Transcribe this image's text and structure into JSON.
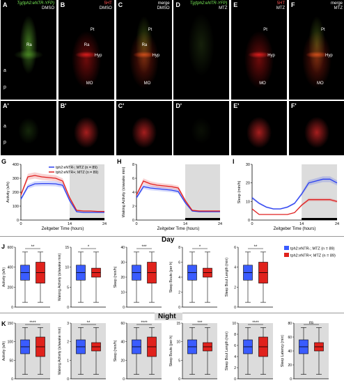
{
  "panels_top": [
    {
      "id": "A",
      "title_lines": [
        "Tg(tph2:eNTR-YFP)",
        "DMSO"
      ],
      "annos": [
        "Ra"
      ]
    },
    {
      "id": "B",
      "title_lines": [
        "5HT",
        "DMSO"
      ],
      "annos": [
        "Pt",
        "Ra",
        "Hyp",
        "MO"
      ]
    },
    {
      "id": "C",
      "title_lines": [
        "merge",
        "DMSO"
      ],
      "annos": [
        "Pt",
        "Ra",
        "Hyp",
        "MO"
      ]
    },
    {
      "id": "D",
      "title_lines": [
        "Tg(tph2:eNTR-YFP)",
        "MTZ"
      ],
      "annos": []
    },
    {
      "id": "E",
      "title_lines": [
        "5HT",
        "MTZ"
      ],
      "annos": [
        "Pt",
        "Hyp",
        "MO"
      ]
    },
    {
      "id": "F",
      "title_lines": [
        "merge",
        "MTZ"
      ],
      "annos": [
        "Pt",
        "Hyp",
        "MO"
      ]
    }
  ],
  "panels_mid": [
    {
      "id": "A'"
    },
    {
      "id": "B'"
    },
    {
      "id": "C'"
    },
    {
      "id": "D'"
    },
    {
      "id": "E'"
    },
    {
      "id": "F'"
    }
  ],
  "axis_a": "a",
  "axis_p": "p",
  "axis_a2": "a",
  "axis_p2": "p",
  "time_charts": [
    {
      "id": "G",
      "ylabel": "Activity (s/h)",
      "xlabel": "Zeitgeber Time (hours)",
      "yticks": [
        0,
        100,
        200,
        300,
        400
      ],
      "xticks": [
        0,
        14,
        24
      ],
      "series": [
        {
          "name": "tph2:eNTR-; MTZ (n = 89)",
          "color": "#2a3ff0"
        },
        {
          "name": "tph2:eNTR+; MTZ (n = 89)",
          "color": "#e02020"
        }
      ]
    },
    {
      "id": "H",
      "ylabel": "Waking Activity (s/awake min)",
      "xlabel": "Zeitgeber Time (hours)",
      "yticks": [
        0,
        2,
        4,
        6,
        8
      ],
      "xticks": [
        0,
        14,
        24
      ]
    },
    {
      "id": "I",
      "ylabel": "Sleep (min/h)",
      "xlabel": "Zeitgeber Time (hours)",
      "yticks": [
        0,
        10,
        20,
        30
      ],
      "xticks": [
        0,
        14,
        24
      ]
    }
  ],
  "day_label": "Day",
  "night_label": "Night",
  "legend": [
    {
      "name": "tph2:eNTR-; MTZ (n = 89)",
      "color": "#3a5cff"
    },
    {
      "name": "tph2:eNTR+; MTZ (n = 89)",
      "color": "#e0221c"
    }
  ],
  "day_boxes": [
    {
      "ylabel": "Activity (s/h)",
      "yticks": [
        0,
        200,
        400,
        600
      ],
      "sig": "**"
    },
    {
      "ylabel": "Waking Activity (s/awake min)",
      "yticks": [
        0,
        5,
        10,
        15
      ],
      "sig": "*"
    },
    {
      "ylabel": "Sleep (min/h)",
      "yticks": [
        0,
        10,
        20,
        30,
        40
      ],
      "sig": "***"
    },
    {
      "ylabel": "Sleep Bouts (per h)",
      "yticks": [
        0,
        2,
        4,
        6,
        8
      ],
      "sig": "*"
    },
    {
      "ylabel": "Sleep Bout Length (min)",
      "yticks": [
        0,
        2,
        4,
        6
      ],
      "sig": "**"
    }
  ],
  "night_boxes": [
    {
      "ylabel": "Activity (s/h)",
      "yticks": [
        0,
        50,
        100,
        150
      ],
      "sig": "****"
    },
    {
      "ylabel": "Waking Activity (s/awake min)",
      "yticks": [
        0,
        1,
        2,
        3
      ],
      "sig": "**"
    },
    {
      "ylabel": "Sleep (min/h)",
      "yticks": [
        0,
        20,
        40,
        60
      ],
      "sig": "****"
    },
    {
      "ylabel": "Sleep Bouts (per h)",
      "yticks": [
        0,
        5,
        10,
        15
      ],
      "sig": "***"
    },
    {
      "ylabel": "Sleep Bout Length (min)",
      "yticks": [
        0,
        2,
        4,
        6,
        8,
        10
      ],
      "sig": "****"
    },
    {
      "ylabel": "Sleep Latency (min)",
      "yticks": [
        0,
        20,
        40,
        60,
        80
      ],
      "sig": "ns"
    }
  ],
  "chart_data": [
    {
      "type": "line",
      "id": "G",
      "x": [
        0,
        2,
        4,
        6,
        8,
        10,
        12,
        14,
        16,
        18,
        20,
        22,
        24
      ],
      "series": [
        {
          "name": "tph2:eNTR-; MTZ (n = 89)",
          "values": [
            150,
            240,
            260,
            262,
            262,
            260,
            250,
            140,
            60,
            55,
            55,
            55,
            55
          ]
        },
        {
          "name": "tph2:eNTR+; MTZ (n = 89)",
          "values": [
            180,
            310,
            320,
            310,
            305,
            300,
            280,
            160,
            70,
            65,
            65,
            62,
            62
          ]
        }
      ],
      "ylim": [
        0,
        400
      ],
      "xlim": [
        0,
        24
      ]
    },
    {
      "type": "line",
      "id": "H",
      "x": [
        0,
        2,
        4,
        6,
        8,
        10,
        12,
        14,
        16,
        18,
        20,
        22,
        24
      ],
      "series": [
        {
          "name": "tph2:eNTR-; MTZ (n = 89)",
          "values": [
            3.2,
            4.8,
            4.6,
            4.5,
            4.4,
            4.3,
            4.1,
            2.5,
            1.3,
            1.2,
            1.2,
            1.2,
            1.2
          ]
        },
        {
          "name": "tph2:eNTR+; MTZ (n = 89)",
          "values": [
            3.6,
            5.6,
            5.2,
            5.0,
            4.9,
            4.8,
            4.6,
            2.8,
            1.4,
            1.3,
            1.3,
            1.3,
            1.3
          ]
        }
      ],
      "ylim": [
        0,
        8
      ],
      "xlim": [
        0,
        24
      ]
    },
    {
      "type": "line",
      "id": "I",
      "x": [
        0,
        2,
        4,
        6,
        8,
        10,
        12,
        14,
        16,
        18,
        20,
        22,
        24
      ],
      "series": [
        {
          "name": "tph2:eNTR-; MTZ (n = 89)",
          "values": [
            12,
            9,
            7,
            6,
            6,
            7,
            9,
            14,
            20,
            21,
            22,
            22,
            20
          ]
        },
        {
          "name": "tph2:eNTR+; MTZ (n = 89)",
          "values": [
            6,
            3,
            3,
            3,
            3,
            3,
            4,
            8,
            11,
            11,
            11,
            11,
            10
          ]
        }
      ],
      "ylim": [
        0,
        30
      ],
      "xlim": [
        0,
        24
      ]
    }
  ]
}
